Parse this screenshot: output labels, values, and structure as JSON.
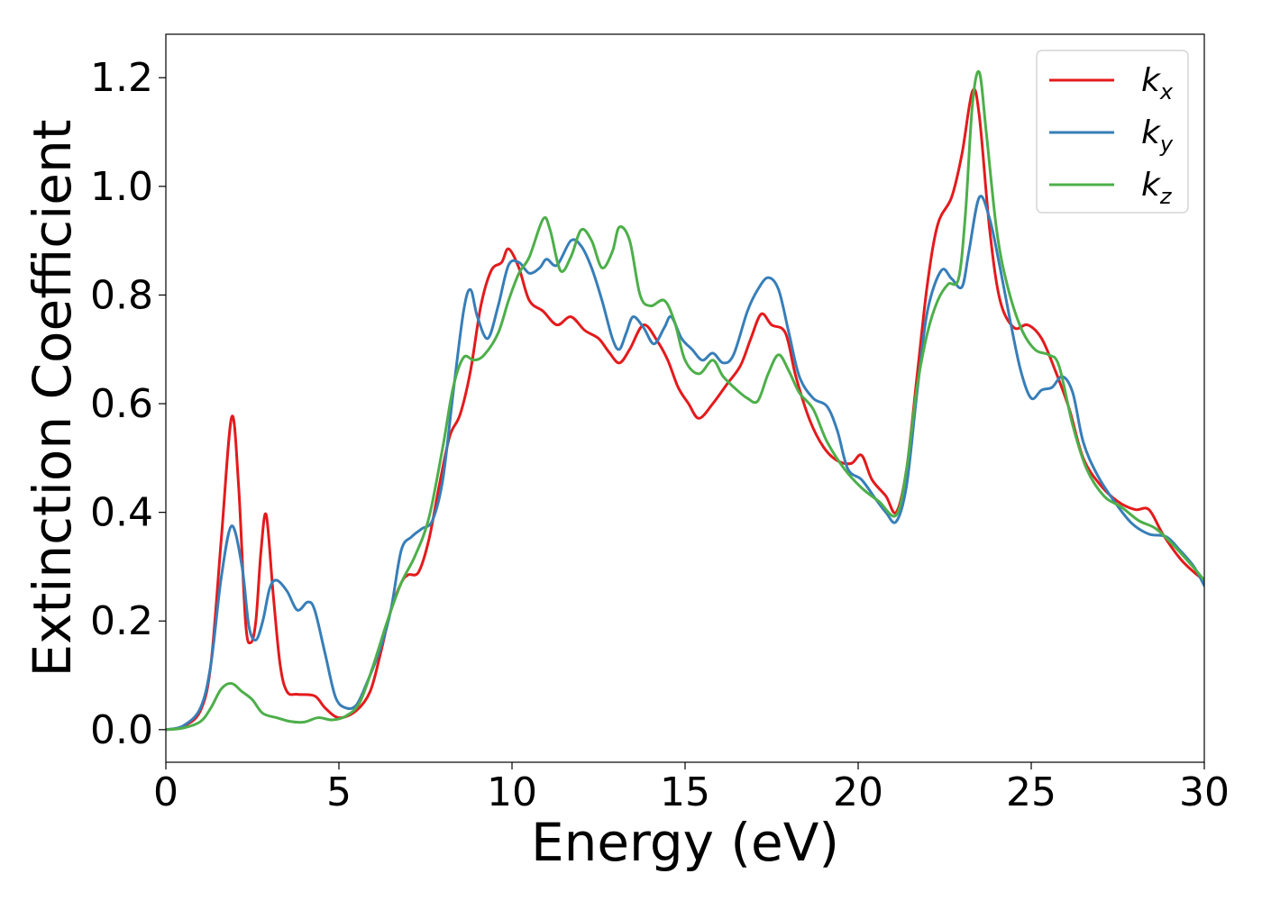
{
  "chart_data": {
    "type": "line",
    "title": "",
    "xlabel": "Energy (eV)",
    "ylabel": "Extinction Coefficient",
    "xlim": [
      0,
      30
    ],
    "ylim": [
      -0.06,
      1.28
    ],
    "xticks": [
      0,
      5,
      10,
      15,
      20,
      25,
      30
    ],
    "xtick_labels": [
      "0",
      "5",
      "10",
      "15",
      "20",
      "25",
      "30"
    ],
    "yticks": [
      0.0,
      0.2,
      0.4,
      0.6,
      0.8,
      1.0,
      1.2
    ],
    "ytick_labels": [
      "0.0",
      "0.2",
      "0.4",
      "0.6",
      "0.8",
      "1.0",
      "1.2"
    ],
    "grid": false,
    "legend_position": "top-right",
    "series": [
      {
        "name": "k_x",
        "label_base": "k",
        "label_sub": "x",
        "color": "#e41a1c",
        "points": [
          [
            0,
            0
          ],
          [
            0.5,
            0.006
          ],
          [
            1,
            0.035
          ],
          [
            1.3,
            0.12
          ],
          [
            1.6,
            0.35
          ],
          [
            1.9,
            0.575
          ],
          [
            2.1,
            0.45
          ],
          [
            2.3,
            0.2
          ],
          [
            2.45,
            0.16
          ],
          [
            2.6,
            0.2
          ],
          [
            2.75,
            0.33
          ],
          [
            2.9,
            0.395
          ],
          [
            3.1,
            0.25
          ],
          [
            3.3,
            0.12
          ],
          [
            3.5,
            0.07
          ],
          [
            3.8,
            0.065
          ],
          [
            4.3,
            0.062
          ],
          [
            4.6,
            0.04
          ],
          [
            5.0,
            0.022
          ],
          [
            5.5,
            0.035
          ],
          [
            5.9,
            0.07
          ],
          [
            6.2,
            0.14
          ],
          [
            6.5,
            0.22
          ],
          [
            6.8,
            0.27
          ],
          [
            7.0,
            0.285
          ],
          [
            7.3,
            0.29
          ],
          [
            7.6,
            0.35
          ],
          [
            7.9,
            0.45
          ],
          [
            8.2,
            0.54
          ],
          [
            8.5,
            0.58
          ],
          [
            8.8,
            0.66
          ],
          [
            9.1,
            0.78
          ],
          [
            9.4,
            0.845
          ],
          [
            9.7,
            0.86
          ],
          [
            9.9,
            0.885
          ],
          [
            10.2,
            0.85
          ],
          [
            10.5,
            0.79
          ],
          [
            10.9,
            0.77
          ],
          [
            11.3,
            0.745
          ],
          [
            11.7,
            0.76
          ],
          [
            12.1,
            0.735
          ],
          [
            12.5,
            0.72
          ],
          [
            12.8,
            0.695
          ],
          [
            13.1,
            0.675
          ],
          [
            13.4,
            0.7
          ],
          [
            13.8,
            0.745
          ],
          [
            14.2,
            0.715
          ],
          [
            14.5,
            0.68
          ],
          [
            14.8,
            0.63
          ],
          [
            15.1,
            0.6
          ],
          [
            15.4,
            0.573
          ],
          [
            15.8,
            0.6
          ],
          [
            16.2,
            0.635
          ],
          [
            16.6,
            0.67
          ],
          [
            16.9,
            0.72
          ],
          [
            17.2,
            0.765
          ],
          [
            17.5,
            0.745
          ],
          [
            17.9,
            0.73
          ],
          [
            18.2,
            0.65
          ],
          [
            18.6,
            0.57
          ],
          [
            19.0,
            0.52
          ],
          [
            19.4,
            0.495
          ],
          [
            19.8,
            0.49
          ],
          [
            20.1,
            0.505
          ],
          [
            20.4,
            0.46
          ],
          [
            20.8,
            0.43
          ],
          [
            21.1,
            0.4
          ],
          [
            21.4,
            0.48
          ],
          [
            21.7,
            0.65
          ],
          [
            22.0,
            0.82
          ],
          [
            22.3,
            0.93
          ],
          [
            22.7,
            0.98
          ],
          [
            23.0,
            1.06
          ],
          [
            23.3,
            1.175
          ],
          [
            23.5,
            1.13
          ],
          [
            23.8,
            0.92
          ],
          [
            24.1,
            0.79
          ],
          [
            24.5,
            0.74
          ],
          [
            24.9,
            0.745
          ],
          [
            25.3,
            0.72
          ],
          [
            25.7,
            0.66
          ],
          [
            26.1,
            0.59
          ],
          [
            26.5,
            0.5
          ],
          [
            27.0,
            0.45
          ],
          [
            27.5,
            0.42
          ],
          [
            28.0,
            0.405
          ],
          [
            28.4,
            0.405
          ],
          [
            28.8,
            0.36
          ],
          [
            29.3,
            0.315
          ],
          [
            29.7,
            0.29
          ],
          [
            30.0,
            0.275
          ]
        ]
      },
      {
        "name": "k_y",
        "label_base": "k",
        "label_sub": "y",
        "color": "#377eb8",
        "points": [
          [
            0,
            0
          ],
          [
            0.5,
            0.007
          ],
          [
            1,
            0.04
          ],
          [
            1.3,
            0.12
          ],
          [
            1.6,
            0.28
          ],
          [
            1.9,
            0.375
          ],
          [
            2.2,
            0.3
          ],
          [
            2.4,
            0.19
          ],
          [
            2.6,
            0.165
          ],
          [
            2.8,
            0.2
          ],
          [
            3.0,
            0.26
          ],
          [
            3.2,
            0.275
          ],
          [
            3.5,
            0.255
          ],
          [
            3.8,
            0.22
          ],
          [
            4.1,
            0.235
          ],
          [
            4.3,
            0.22
          ],
          [
            4.6,
            0.14
          ],
          [
            4.9,
            0.06
          ],
          [
            5.2,
            0.04
          ],
          [
            5.5,
            0.045
          ],
          [
            5.8,
            0.085
          ],
          [
            6.2,
            0.15
          ],
          [
            6.5,
            0.22
          ],
          [
            6.8,
            0.33
          ],
          [
            7.1,
            0.355
          ],
          [
            7.4,
            0.37
          ],
          [
            7.7,
            0.385
          ],
          [
            8.0,
            0.46
          ],
          [
            8.3,
            0.62
          ],
          [
            8.6,
            0.77
          ],
          [
            8.8,
            0.81
          ],
          [
            9.0,
            0.76
          ],
          [
            9.3,
            0.72
          ],
          [
            9.6,
            0.78
          ],
          [
            9.9,
            0.855
          ],
          [
            10.2,
            0.86
          ],
          [
            10.5,
            0.84
          ],
          [
            10.8,
            0.85
          ],
          [
            11.0,
            0.866
          ],
          [
            11.3,
            0.855
          ],
          [
            11.7,
            0.9
          ],
          [
            12.0,
            0.89
          ],
          [
            12.3,
            0.85
          ],
          [
            12.6,
            0.79
          ],
          [
            12.9,
            0.72
          ],
          [
            13.1,
            0.7
          ],
          [
            13.3,
            0.73
          ],
          [
            13.5,
            0.76
          ],
          [
            13.8,
            0.74
          ],
          [
            14.1,
            0.71
          ],
          [
            14.4,
            0.74
          ],
          [
            14.6,
            0.76
          ],
          [
            14.9,
            0.72
          ],
          [
            15.2,
            0.7
          ],
          [
            15.5,
            0.68
          ],
          [
            15.8,
            0.693
          ],
          [
            16.1,
            0.675
          ],
          [
            16.4,
            0.69
          ],
          [
            16.8,
            0.77
          ],
          [
            17.1,
            0.81
          ],
          [
            17.4,
            0.832
          ],
          [
            17.7,
            0.81
          ],
          [
            18.0,
            0.73
          ],
          [
            18.3,
            0.65
          ],
          [
            18.7,
            0.61
          ],
          [
            19.1,
            0.595
          ],
          [
            19.4,
            0.55
          ],
          [
            19.7,
            0.48
          ],
          [
            20.1,
            0.46
          ],
          [
            20.5,
            0.425
          ],
          [
            20.8,
            0.4
          ],
          [
            21.1,
            0.383
          ],
          [
            21.4,
            0.45
          ],
          [
            21.7,
            0.62
          ],
          [
            22.0,
            0.77
          ],
          [
            22.4,
            0.845
          ],
          [
            22.7,
            0.83
          ],
          [
            23.0,
            0.815
          ],
          [
            23.2,
            0.88
          ],
          [
            23.5,
            0.98
          ],
          [
            23.8,
            0.94
          ],
          [
            24.1,
            0.85
          ],
          [
            24.4,
            0.75
          ],
          [
            24.7,
            0.66
          ],
          [
            25.0,
            0.61
          ],
          [
            25.3,
            0.625
          ],
          [
            25.6,
            0.63
          ],
          [
            25.9,
            0.65
          ],
          [
            26.2,
            0.62
          ],
          [
            26.5,
            0.53
          ],
          [
            26.9,
            0.47
          ],
          [
            27.4,
            0.42
          ],
          [
            27.9,
            0.38
          ],
          [
            28.4,
            0.36
          ],
          [
            28.9,
            0.355
          ],
          [
            29.3,
            0.33
          ],
          [
            29.7,
            0.3
          ],
          [
            30.0,
            0.265
          ]
        ]
      },
      {
        "name": "k_z",
        "label_base": "k",
        "label_sub": "z",
        "color": "#4daf4a",
        "points": [
          [
            0,
            0
          ],
          [
            0.5,
            0.003
          ],
          [
            1,
            0.015
          ],
          [
            1.3,
            0.04
          ],
          [
            1.6,
            0.075
          ],
          [
            1.9,
            0.085
          ],
          [
            2.2,
            0.07
          ],
          [
            2.5,
            0.055
          ],
          [
            2.8,
            0.03
          ],
          [
            3.2,
            0.022
          ],
          [
            3.6,
            0.015
          ],
          [
            4.0,
            0.014
          ],
          [
            4.4,
            0.022
          ],
          [
            4.8,
            0.018
          ],
          [
            5.2,
            0.025
          ],
          [
            5.6,
            0.05
          ],
          [
            6.0,
            0.12
          ],
          [
            6.4,
            0.2
          ],
          [
            6.8,
            0.27
          ],
          [
            7.2,
            0.32
          ],
          [
            7.6,
            0.39
          ],
          [
            8.0,
            0.52
          ],
          [
            8.3,
            0.63
          ],
          [
            8.6,
            0.685
          ],
          [
            8.9,
            0.68
          ],
          [
            9.2,
            0.69
          ],
          [
            9.6,
            0.73
          ],
          [
            9.9,
            0.79
          ],
          [
            10.2,
            0.84
          ],
          [
            10.5,
            0.87
          ],
          [
            10.9,
            0.94
          ],
          [
            11.1,
            0.92
          ],
          [
            11.4,
            0.845
          ],
          [
            11.7,
            0.87
          ],
          [
            12.0,
            0.92
          ],
          [
            12.3,
            0.9
          ],
          [
            12.6,
            0.85
          ],
          [
            12.9,
            0.88
          ],
          [
            13.1,
            0.925
          ],
          [
            13.4,
            0.9
          ],
          [
            13.7,
            0.8
          ],
          [
            14.0,
            0.78
          ],
          [
            14.4,
            0.79
          ],
          [
            14.7,
            0.75
          ],
          [
            15.0,
            0.68
          ],
          [
            15.4,
            0.655
          ],
          [
            15.8,
            0.68
          ],
          [
            16.1,
            0.65
          ],
          [
            16.5,
            0.625
          ],
          [
            16.8,
            0.61
          ],
          [
            17.1,
            0.605
          ],
          [
            17.4,
            0.655
          ],
          [
            17.7,
            0.69
          ],
          [
            18.0,
            0.66
          ],
          [
            18.3,
            0.62
          ],
          [
            18.7,
            0.59
          ],
          [
            19.1,
            0.53
          ],
          [
            19.6,
            0.48
          ],
          [
            20.1,
            0.445
          ],
          [
            20.6,
            0.42
          ],
          [
            21.1,
            0.395
          ],
          [
            21.4,
            0.48
          ],
          [
            21.7,
            0.63
          ],
          [
            22.0,
            0.73
          ],
          [
            22.3,
            0.79
          ],
          [
            22.6,
            0.82
          ],
          [
            22.9,
            0.83
          ],
          [
            23.1,
            0.95
          ],
          [
            23.3,
            1.15
          ],
          [
            23.5,
            1.21
          ],
          [
            23.7,
            1.1
          ],
          [
            24.0,
            0.92
          ],
          [
            24.3,
            0.82
          ],
          [
            24.7,
            0.74
          ],
          [
            25.1,
            0.7
          ],
          [
            25.5,
            0.69
          ],
          [
            25.8,
            0.67
          ],
          [
            26.2,
            0.56
          ],
          [
            26.6,
            0.48
          ],
          [
            27.1,
            0.43
          ],
          [
            27.6,
            0.41
          ],
          [
            28.1,
            0.385
          ],
          [
            28.6,
            0.37
          ],
          [
            29.1,
            0.34
          ],
          [
            29.6,
            0.305
          ],
          [
            30.0,
            0.275
          ]
        ]
      }
    ]
  }
}
